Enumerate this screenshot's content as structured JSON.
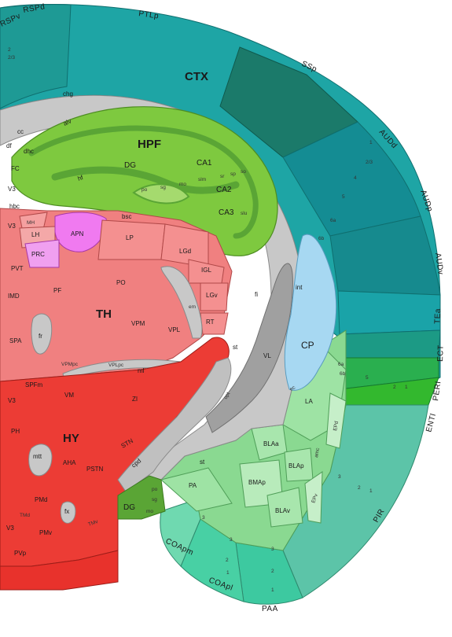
{
  "colors": {
    "isocortex_light": "#1ea5a5",
    "isocortex_dark": "#1b7a6a",
    "isocortex_teal": "#148c93",
    "hippocampus": "#7ec93f",
    "hippocampus_dark": "#5aa535",
    "thalamus": "#f08080",
    "thalamus_light": "#f4a0a0",
    "hypothalamus": "#ec3c35",
    "apn": "#f07af0",
    "striatum_cp": "#a7d8f2",
    "cortical_subplate": "#8ad991",
    "olfactory": "#3dc9a0",
    "fiber_tracts": "#c8c8c8",
    "ventricle": "#a0a0a0",
    "entorhinal": "#33b82e"
  },
  "labels": {
    "ctx": "CTX",
    "hpf": "HPF",
    "th": "TH",
    "hy": "HY",
    "cp": "CP",
    "rspd": "RSPd",
    "rspv": "RSPv",
    "ptlp": "PTLp",
    "ssp": "SSp",
    "audd": "AUDd",
    "audp": "AUDp",
    "audv": "AUDv",
    "tea": "TEa",
    "ect": "ECT",
    "peri": "PERI",
    "enti": "ENTl",
    "pir": "PIR",
    "paa": "PAA",
    "coapl": "COApl",
    "coapm": "COApm",
    "chg": "chg",
    "cc": "cc",
    "alv": "alv",
    "df": "df",
    "dhc": "dhc",
    "fc": "FC",
    "hf": "hf",
    "dg": "DG",
    "dg2": "DG",
    "ca1": "CA1",
    "ca2": "CA2",
    "ca3": "CA3",
    "po": "po",
    "po2": "po",
    "sg": "sg",
    "sg2": "sg",
    "mo": "mo",
    "mo2": "mo",
    "slm": "slm",
    "sr": "sr",
    "sp": "sp",
    "so": "so",
    "slu": "slu",
    "v3_top": "V3",
    "v3_mid": "V3",
    "v3_low": "V3",
    "v3_bottom": "V3",
    "hbc": "hbc",
    "bsc": "bsc",
    "mh": "MH",
    "lh": "LH",
    "apn": "APN",
    "prc": "PRC",
    "lp": "LP",
    "pvt": "PVT",
    "lgd": "LGd",
    "igl": "IGL",
    "lgv": "LGv",
    "po_th": "PO",
    "pf": "PF",
    "imd": "IMD",
    "em": "em",
    "rt": "RT",
    "vpm": "VPM",
    "vpl": "VPL",
    "fr": "fr",
    "spa": "SPA",
    "st": "st",
    "st2": "st",
    "ypmpc": "VPMpc",
    "vplpc": "VPLpc",
    "ml": "ml",
    "spfm": "SPFm",
    "vm": "VM",
    "zi": "ZI",
    "fi": "fi",
    "int": "int",
    "vl": "VL",
    "ec": "ec",
    "opt": "opt",
    "la": "LA",
    "ph": "PH",
    "mtt": "mtt",
    "aha": "AHA",
    "pstn": "PSTN",
    "stn": "STN",
    "cpd": "cpd",
    "pmd": "PMd",
    "fx": "fx",
    "tmd": "TMd",
    "tmv": "TMv",
    "pmv": "PMv",
    "pvp": "PVp",
    "blaa": "BLAa",
    "blap": "BLAp",
    "bmap": "BMAp",
    "blav": "BLAv",
    "amc": "amc",
    "epd": "EPd",
    "epv": "EPv",
    "pa": "PA",
    "layer_1": "1",
    "layer_23": "2/3",
    "layer_2": "2",
    "layer_3": "3",
    "layer_4": "4",
    "layer_5": "5",
    "layer_6a": "6a",
    "layer_6b": "6b"
  }
}
